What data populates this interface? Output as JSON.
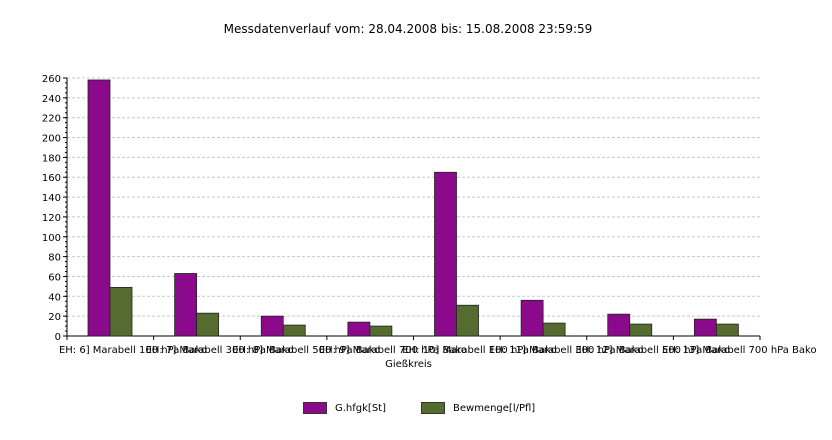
{
  "chart_data": {
    "type": "bar",
    "title": "Messdatenverlauf vom: 28.04.2008  bis: 15.08.2008 23:59:59",
    "xlabel": "Gießkreis",
    "ylabel": "",
    "ylim": [
      0,
      260
    ],
    "yticks": [
      0,
      20,
      40,
      60,
      80,
      100,
      120,
      140,
      160,
      180,
      200,
      220,
      240,
      260
    ],
    "grid": true,
    "legend_position": "bottom",
    "categories": [
      "EH: 6] Marabell 100 hPa Bako",
      "EH: 7] Marabell 300 hPa Bako",
      "EH: 8] Marabell 500 hPa Bako",
      "EH: 9] Marabell 700 hPa Bako",
      "EH: 10] Marabell 100 hPa Bako",
      "EH: 11] Marabell 300 hPa Bako",
      "EH: 12] Marabell 500 hPa Bako",
      "EH: 13] Marabell 700 hPa Bako"
    ],
    "series": [
      {
        "name": "G.hfgk[St]",
        "color": "#8b0a8b",
        "values": [
          258,
          63,
          20,
          14,
          165,
          36,
          22,
          17
        ]
      },
      {
        "name": "Bewmenge[l/Pfl]",
        "color": "#556b2f",
        "values": [
          49,
          23,
          11,
          10,
          31,
          13,
          12,
          12
        ]
      }
    ]
  }
}
